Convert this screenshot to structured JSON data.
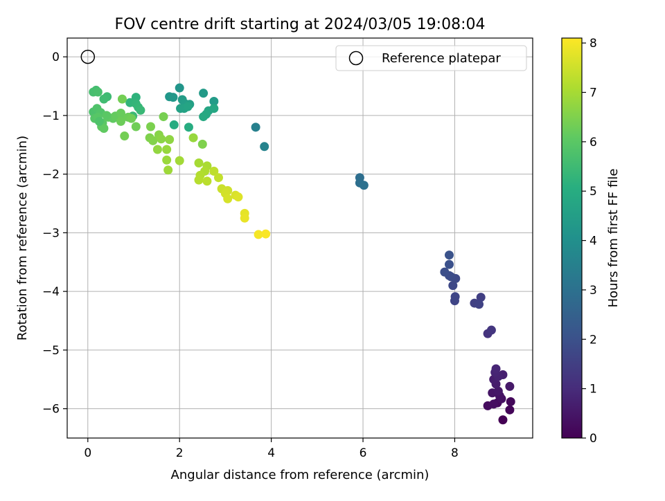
{
  "chart_data": {
    "type": "scatter",
    "title": "FOV centre drift starting at 2024/03/05 19:08:04",
    "xlabel": "Angular distance from reference (arcmin)",
    "ylabel": "Rotation from reference (arcmin)",
    "xlim": [
      -0.45,
      9.7
    ],
    "ylim": [
      -6.5,
      0.32
    ],
    "xticks": [
      0,
      2,
      4,
      6,
      8
    ],
    "yticks": [
      0,
      -1,
      -2,
      -3,
      -4,
      -5,
      -6
    ],
    "grid": true,
    "legend": {
      "placement": "upper-right",
      "entries": [
        "Reference platepar"
      ]
    },
    "reference_point": {
      "x": 0,
      "y": 0
    },
    "colorbar": {
      "label": "Hours from first FF file",
      "colormap": "viridis",
      "range": [
        0,
        8.1
      ],
      "ticks": [
        0,
        1,
        2,
        3,
        4,
        5,
        6,
        7,
        8
      ]
    },
    "series": [
      {
        "points": [
          [
            9.05,
            -6.19
          ],
          [
            9.2,
            -6.02
          ],
          [
            9.22,
            -5.88
          ],
          [
            8.93,
            -5.9
          ],
          [
            8.72,
            -5.95
          ],
          [
            8.85,
            -5.92
          ],
          [
            9.02,
            -5.83
          ],
          [
            8.98,
            -5.78
          ],
          [
            8.82,
            -5.73
          ],
          [
            8.95,
            -5.7
          ],
          [
            9.2,
            -5.62
          ],
          [
            8.9,
            -5.58
          ],
          [
            8.85,
            -5.5
          ],
          [
            9.05,
            -5.42
          ],
          [
            8.95,
            -5.45
          ],
          [
            8.88,
            -5.38
          ],
          [
            8.9,
            -5.32
          ],
          [
            8.72,
            -4.72
          ],
          [
            8.8,
            -4.66
          ],
          [
            8.57,
            -4.1
          ],
          [
            8.43,
            -4.2
          ],
          [
            8.53,
            -4.22
          ],
          [
            8.0,
            -4.16
          ],
          [
            8.01,
            -4.09
          ],
          [
            7.96,
            -3.9
          ],
          [
            8.02,
            -3.78
          ],
          [
            7.92,
            -3.75
          ],
          [
            7.88,
            -3.73
          ],
          [
            7.78,
            -3.67
          ],
          [
            7.88,
            -3.54
          ],
          [
            7.88,
            -3.38
          ],
          [
            5.93,
            -2.06
          ],
          [
            5.93,
            -2.15
          ],
          [
            6.02,
            -2.19
          ],
          [
            3.66,
            -1.2
          ],
          [
            3.85,
            -1.53
          ],
          [
            2.0,
            -0.53
          ],
          [
            1.78,
            -0.68
          ],
          [
            1.86,
            -0.69
          ],
          [
            2.52,
            -0.62
          ],
          [
            2.75,
            -0.76
          ],
          [
            2.06,
            -0.73
          ],
          [
            2.12,
            -0.8
          ],
          [
            2.22,
            -0.81
          ],
          [
            2.02,
            -0.88
          ],
          [
            2.1,
            -0.88
          ],
          [
            2.18,
            -0.85
          ],
          [
            2.63,
            -0.92
          ],
          [
            2.75,
            -0.88
          ],
          [
            2.58,
            -0.98
          ],
          [
            2.52,
            -1.02
          ],
          [
            1.88,
            -1.16
          ],
          [
            2.2,
            -1.2
          ],
          [
            1.05,
            -0.69
          ],
          [
            0.92,
            -0.78
          ],
          [
            1.05,
            -0.8
          ],
          [
            1.1,
            -0.86
          ],
          [
            1.15,
            -0.91
          ],
          [
            0.98,
            -1.01
          ],
          [
            0.42,
            -0.68
          ],
          [
            0.35,
            -0.72
          ],
          [
            0.18,
            -0.57
          ],
          [
            0.12,
            -0.6
          ],
          [
            0.22,
            -0.6
          ],
          [
            0.12,
            -0.94
          ],
          [
            0.2,
            -0.88
          ],
          [
            0.28,
            -0.95
          ],
          [
            0.15,
            -1.05
          ],
          [
            0.22,
            -1.03
          ],
          [
            0.32,
            -1.13
          ],
          [
            0.3,
            -1.19
          ],
          [
            0.35,
            -1.22
          ],
          [
            0.45,
            -1.03
          ],
          [
            0.55,
            -1.05
          ],
          [
            0.6,
            -1.01
          ],
          [
            0.72,
            -0.96
          ],
          [
            0.75,
            -1.03
          ],
          [
            0.72,
            -1.1
          ],
          [
            0.88,
            -1.03
          ],
          [
            0.95,
            -1.05
          ],
          [
            1.05,
            -1.19
          ],
          [
            0.8,
            -1.35
          ],
          [
            0.75,
            -0.72
          ],
          [
            0.41,
            -1.0
          ],
          [
            0.25,
            -1.1
          ],
          [
            1.65,
            -1.02
          ],
          [
            1.37,
            -1.19
          ],
          [
            1.35,
            -1.38
          ],
          [
            1.42,
            -1.43
          ],
          [
            1.55,
            -1.33
          ],
          [
            1.6,
            -1.4
          ],
          [
            1.78,
            -1.41
          ],
          [
            1.52,
            -1.58
          ],
          [
            1.72,
            -1.58
          ],
          [
            1.72,
            -1.76
          ],
          [
            1.75,
            -1.93
          ],
          [
            2.0,
            -1.77
          ],
          [
            2.5,
            -1.49
          ],
          [
            2.3,
            -1.38
          ],
          [
            2.42,
            -1.81
          ],
          [
            2.6,
            -1.86
          ],
          [
            2.55,
            -1.95
          ],
          [
            2.45,
            -2.02
          ],
          [
            2.42,
            -2.1
          ],
          [
            2.6,
            -2.12
          ],
          [
            2.75,
            -1.95
          ],
          [
            2.85,
            -2.06
          ],
          [
            2.92,
            -2.25
          ],
          [
            3.05,
            -2.28
          ],
          [
            3.0,
            -2.33
          ],
          [
            3.05,
            -2.42
          ],
          [
            3.22,
            -2.36
          ],
          [
            3.28,
            -2.39
          ],
          [
            3.42,
            -2.67
          ],
          [
            3.42,
            -2.75
          ],
          [
            3.72,
            -3.03
          ],
          [
            3.88,
            -3.02
          ]
        ],
        "hours": [
          0.0,
          0.1,
          0.15,
          0.2,
          0.25,
          0.3,
          0.35,
          0.4,
          0.45,
          0.5,
          0.55,
          0.6,
          0.65,
          0.7,
          0.75,
          0.8,
          0.85,
          1.2,
          1.25,
          1.5,
          1.55,
          1.6,
          1.65,
          1.7,
          1.75,
          1.8,
          1.85,
          1.9,
          1.95,
          2.0,
          2.05,
          2.9,
          2.95,
          3.0,
          3.5,
          3.6,
          4.2,
          4.25,
          4.3,
          4.35,
          4.4,
          4.45,
          4.5,
          4.55,
          4.6,
          4.65,
          4.7,
          4.75,
          4.8,
          4.85,
          4.9,
          4.95,
          5.0,
          5.2,
          5.25,
          5.3,
          5.35,
          5.4,
          5.45,
          5.5,
          5.55,
          5.6,
          5.65,
          5.7,
          5.75,
          5.8,
          5.85,
          5.9,
          5.95,
          6.0,
          6.05,
          6.1,
          6.1,
          6.1,
          6.15,
          6.2,
          6.2,
          6.25,
          6.25,
          6.3,
          6.3,
          6.35,
          6.35,
          6.0,
          5.8,
          6.4,
          6.45,
          6.5,
          6.55,
          6.6,
          6.65,
          6.7,
          6.75,
          6.8,
          6.85,
          6.9,
          6.95,
          6.5,
          6.8,
          7.0,
          7.05,
          7.1,
          7.15,
          7.2,
          7.25,
          7.3,
          7.35,
          7.45,
          7.5,
          7.55,
          7.6,
          7.65,
          7.7,
          7.8,
          7.85,
          8.0,
          8.05
        ]
      }
    ]
  }
}
